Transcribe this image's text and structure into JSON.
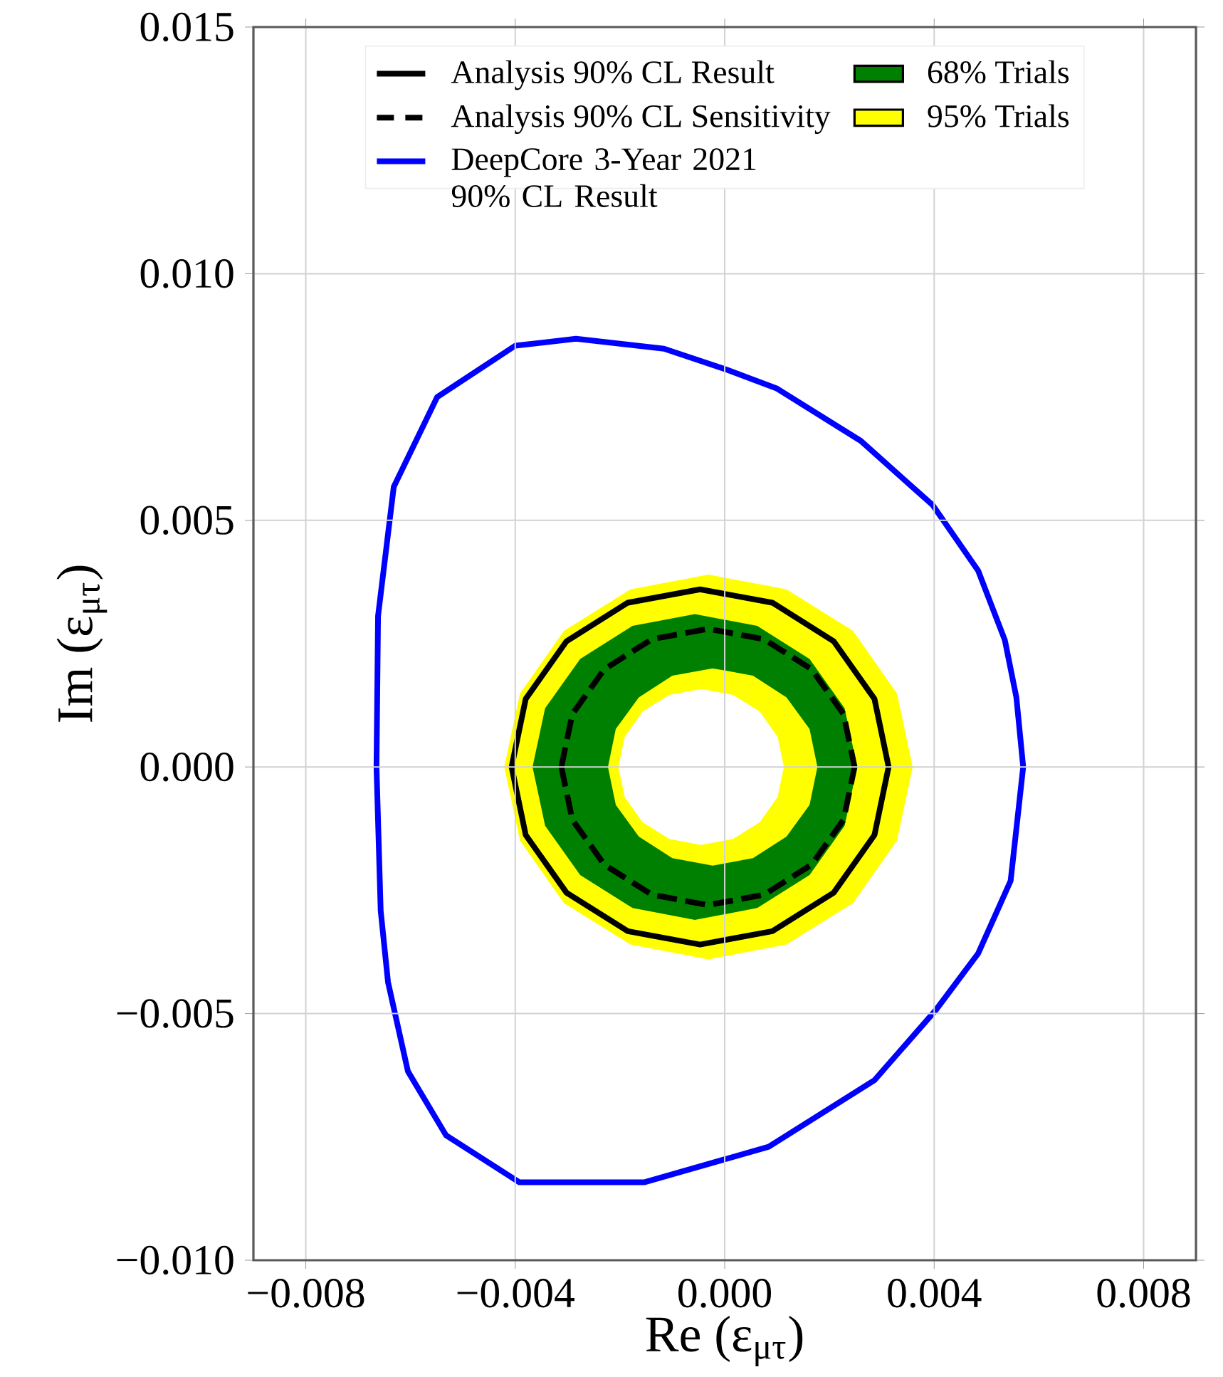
{
  "chart_data": {
    "type": "line",
    "xlabel": "Re (ε$_{μτ}$)",
    "ylabel": "Im (ε$_{μτ}$)",
    "xlim": [
      -0.009,
      0.009
    ],
    "ylim": [
      -0.01,
      0.015
    ],
    "xticks": [
      {
        "value": -0.008,
        "label": "−0.008"
      },
      {
        "value": -0.004,
        "label": "−0.004"
      },
      {
        "value": 0,
        "label": "0.000"
      },
      {
        "value": 0.004,
        "label": "0.004"
      },
      {
        "value": 0.008,
        "label": "0.008"
      }
    ],
    "yticks": [
      {
        "value": -0.01,
        "label": "−0.010"
      },
      {
        "value": -0.005,
        "label": "−0.005"
      },
      {
        "value": 0,
        "label": "0.000"
      },
      {
        "value": 0.005,
        "label": "0.005"
      },
      {
        "value": 0.01,
        "label": "0.010"
      },
      {
        "value": 0.015,
        "label": "0.015"
      }
    ],
    "grid": true,
    "legend": "top",
    "series": [
      {
        "name": "95% Trials",
        "type": "area",
        "color": "#ffff00",
        "x": [
          0.00359,
          0.00329,
          0.00245,
          0.00118,
          -0.00031,
          -0.0018,
          -0.00307,
          -0.00391,
          -0.00421,
          -0.00391,
          -0.00307,
          -0.0018,
          -0.00031,
          0.00118,
          0.00245,
          0.00329,
          null,
          0.00113,
          0.00101,
          0.00067,
          0.00016,
          -0.00045,
          -0.00106,
          -0.00157,
          -0.00191,
          -0.00203,
          -0.00191,
          -0.00157,
          -0.00106,
          -0.00045,
          0.00016,
          0.00067,
          0.00101
        ],
        "values": [
          0,
          0.00149,
          0.00276,
          0.0036,
          0.0039,
          0.0036,
          0.00276,
          0.00149,
          0,
          -0.00149,
          -0.00276,
          -0.0036,
          -0.0039,
          -0.0036,
          -0.00276,
          -0.00149,
          null,
          0,
          0.00061,
          0.00112,
          0.00146,
          0.00158,
          0.00146,
          0.00112,
          0.00061,
          0,
          -0.00061,
          -0.00112,
          -0.00146,
          -0.00158,
          -0.00146,
          -0.00112,
          -0.00061
        ]
      },
      {
        "name": "68% Trials",
        "type": "area",
        "color": "#008000",
        "x": [
          0.00253,
          0.00229,
          0.00162,
          0.00062,
          -0.00057,
          -0.00176,
          -0.00276,
          -0.00343,
          -0.00367,
          -0.00343,
          -0.00276,
          -0.00176,
          -0.00057,
          0.00062,
          0.00162,
          0.00229,
          null,
          0.00177,
          0.00162,
          0.00118,
          0.00054,
          -0.00023,
          -0.001,
          -0.00164,
          -0.00208,
          -0.00223,
          -0.00208,
          -0.00164,
          -0.001,
          -0.00023,
          0.00054,
          0.00118,
          0.00162
        ],
        "values": [
          0,
          0.00119,
          0.00219,
          0.00286,
          0.0031,
          0.00286,
          0.00219,
          0.00119,
          0,
          -0.00119,
          -0.00219,
          -0.00286,
          -0.0031,
          -0.00286,
          -0.00219,
          -0.00119,
          null,
          0,
          0.00077,
          0.00141,
          0.00185,
          0.002,
          0.00185,
          0.00141,
          0.00077,
          0,
          -0.00077,
          -0.00141,
          -0.00185,
          -0.002,
          -0.00185,
          -0.00141,
          -0.00077
        ]
      },
      {
        "name": "Analysis 90% CL Result",
        "color": "#000000",
        "line_style": "solid",
        "x": [
          -0.00407,
          -0.0038,
          -0.00302,
          -0.00185,
          -0.00047,
          0.00091,
          0.00208,
          0.00286,
          0.00313,
          null,
          -0.00407,
          -0.0038,
          -0.00302,
          -0.00185,
          -0.00047,
          0.00091,
          0.00208,
          0.00286,
          0.00313
        ],
        "values": [
          0,
          0.00138,
          0.00255,
          0.00333,
          0.0036,
          0.00333,
          0.00255,
          0.00138,
          0,
          null,
          0,
          -0.00138,
          -0.00255,
          -0.00333,
          -0.0036,
          -0.00333,
          -0.00255,
          -0.00138,
          0
        ]
      },
      {
        "name": "Analysis 90% CL Sensitivity",
        "color": "#000000",
        "line_style": "dashed",
        "x": [
          -0.00312,
          -0.00291,
          -0.0023,
          -0.00139,
          -0.00032,
          0.00075,
          0.00166,
          0.00227,
          0.00248,
          null,
          -0.00312,
          -0.00291,
          -0.0023,
          -0.00139,
          -0.00032,
          0.00075,
          0.00166,
          0.00227,
          0.00248
        ],
        "values": [
          0,
          0.00107,
          0.00198,
          0.00259,
          0.0028,
          0.00259,
          0.00198,
          0.00107,
          0,
          null,
          0,
          -0.00107,
          -0.00198,
          -0.00259,
          -0.0028,
          -0.00259,
          -0.00198,
          -0.00107,
          0
        ]
      },
      {
        "name": "DeepCore 3-Year 2021 90% CL Result",
        "color": "#0000ff",
        "line_style": "solid",
        "x": [
          -0.00665,
          -0.00662,
          -0.00632,
          -0.00549,
          -0.004,
          -0.00284,
          -0.00116,
          5e-05,
          0.001,
          0.0026,
          0.00397,
          0.00484,
          0.00535,
          0.00557,
          0.0057,
          null,
          -0.00665,
          -0.00657,
          -0.00643,
          -0.00605,
          -0.00532,
          -0.00392,
          -0.00154,
          0.00084,
          0.00286,
          0.00403,
          0.00484,
          0.00546,
          0.0057
        ],
        "values": [
          0,
          0.00306,
          0.00568,
          0.0075,
          0.00854,
          0.00868,
          0.00848,
          0.00805,
          0.00767,
          0.00661,
          0.00531,
          0.00398,
          0.00257,
          0.00141,
          0,
          null,
          0,
          -0.00291,
          -0.00436,
          -0.00617,
          -0.00747,
          -0.00842,
          -0.00842,
          -0.0077,
          -0.00635,
          -0.00493,
          -0.00378,
          -0.00231,
          0
        ]
      }
    ]
  }
}
